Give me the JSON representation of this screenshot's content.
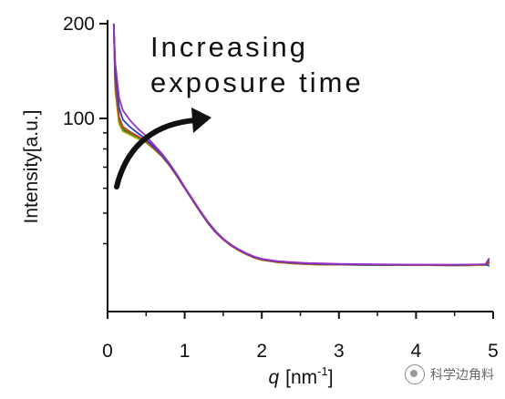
{
  "chart_data": {
    "type": "line",
    "xlabel_var": "q",
    "xlabel_unit": "[nm",
    "xlabel_sup": "-1",
    "xlabel_close": "]",
    "ylabel": "Intensity[a.u.]",
    "y_scale": "log",
    "xlim": [
      0,
      5
    ],
    "ylim": [
      30,
      200
    ],
    "x_ticks": [
      0,
      1,
      2,
      3,
      4,
      5
    ],
    "x_tick_labels": [
      "0",
      "1",
      "2",
      "3",
      "4",
      "5"
    ],
    "y_tick_labels": [
      {
        "value": 200,
        "label": "200"
      },
      {
        "value": 100,
        "label": "100"
      }
    ],
    "y_minor_ticks": [
      90,
      80,
      70,
      60,
      50,
      40
    ],
    "grid": false,
    "legend": "none",
    "annotation": {
      "lines": [
        "Increasing",
        "exposure time"
      ],
      "arrow": "curved arrow pointing up and to the right, indicating increasing exposure time"
    },
    "x": [
      0.08,
      0.1,
      0.15,
      0.2,
      0.3,
      0.4,
      0.5,
      0.6,
      0.7,
      0.8,
      0.9,
      1.0,
      1.1,
      1.2,
      1.3,
      1.4,
      1.5,
      1.6,
      1.7,
      1.8,
      1.9,
      2.0,
      2.2,
      2.4,
      2.6,
      2.8,
      3.0,
      3.5,
      4.0,
      4.5,
      4.9,
      4.95
    ],
    "series": [
      {
        "color": "#000000",
        "values": [
          200,
          125,
          98,
          92,
          89,
          86.5,
          84,
          80,
          76,
          71,
          65.5,
          60,
          55,
          50.5,
          46.5,
          43.5,
          41.2,
          39.4,
          38.1,
          37.0,
          36.1,
          35.5,
          34.9,
          34.6,
          34.4,
          34.3,
          34.3,
          34.2,
          34.2,
          34.1,
          34.2,
          35.0
        ]
      },
      {
        "color": "#b8a400",
        "values": [
          200,
          122,
          96,
          91,
          88.5,
          86,
          83.8,
          80,
          76,
          71,
          65.5,
          60,
          55,
          50.5,
          46.5,
          43.5,
          41.2,
          39.4,
          38.1,
          37.0,
          36.1,
          35.5,
          34.9,
          34.6,
          34.4,
          34.3,
          34.3,
          34.2,
          34.2,
          34.1,
          34.2,
          34.4
        ]
      },
      {
        "color": "#2e8b2e",
        "values": [
          200,
          126,
          99,
          92.5,
          89.5,
          87,
          84.3,
          80.3,
          76.2,
          71.2,
          65.7,
          60.1,
          55.1,
          50.6,
          46.6,
          43.6,
          41.3,
          39.5,
          38.2,
          37.1,
          36.2,
          35.6,
          35.0,
          34.7,
          34.5,
          34.4,
          34.3,
          34.2,
          34.2,
          34.2,
          34.3,
          35.5
        ]
      },
      {
        "color": "#d04010",
        "values": [
          200,
          130,
          101,
          94,
          90.5,
          87.6,
          84.8,
          80.6,
          76.4,
          71.3,
          65.8,
          60.2,
          55.2,
          50.7,
          46.7,
          43.6,
          41.3,
          39.5,
          38.2,
          37.1,
          36.2,
          35.6,
          35.0,
          34.7,
          34.5,
          34.4,
          34.3,
          34.3,
          34.2,
          34.2,
          34.3,
          34.8
        ]
      },
      {
        "color": "#2a3fbf",
        "values": [
          200,
          140,
          108,
          99,
          93.5,
          89.5,
          86.0,
          81.3,
          76.9,
          71.6,
          66.0,
          60.3,
          55.3,
          50.8,
          46.8,
          43.7,
          41.4,
          39.6,
          38.3,
          37.2,
          36.3,
          35.7,
          35.1,
          34.8,
          34.6,
          34.5,
          34.4,
          34.3,
          34.3,
          34.2,
          34.4,
          34.0
        ]
      },
      {
        "color": "#9b2fc4",
        "values": [
          200,
          150,
          116,
          106,
          98,
          92.5,
          88.0,
          82.5,
          77.6,
          72.1,
          66.4,
          60.6,
          55.5,
          51.0,
          47.0,
          43.9,
          41.5,
          39.7,
          38.4,
          37.3,
          36.4,
          35.8,
          35.2,
          34.9,
          34.7,
          34.6,
          34.5,
          34.4,
          34.3,
          34.3,
          34.4,
          36.0
        ]
      }
    ]
  },
  "watermark": {
    "text": "科学边角料",
    "icon": "chat-bubble-icon"
  }
}
